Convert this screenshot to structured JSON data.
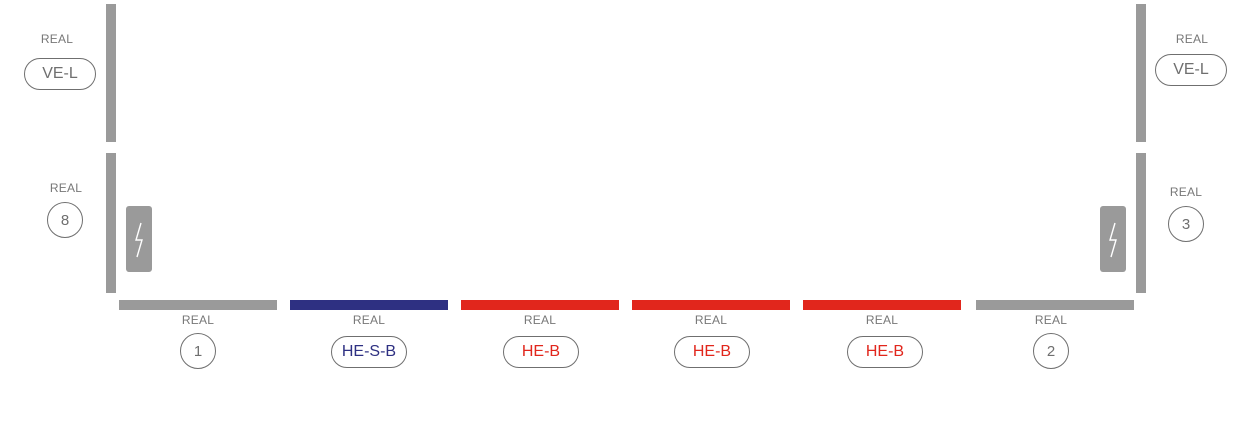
{
  "colors": {
    "gray": "#9a9a9a",
    "navy": "#2e3082",
    "red": "#e1261c",
    "text": "#6f6f6f"
  },
  "side_labels": {
    "left_top": {
      "small": "REAL",
      "name": "VE-L"
    },
    "right_top": {
      "small": "REAL",
      "name": "VE-L"
    },
    "left_mid": {
      "small": "REAL",
      "name": "8"
    },
    "right_mid": {
      "small": "REAL",
      "name": "3"
    }
  },
  "sockets": [
    {
      "icon": "lightning-icon"
    },
    {
      "icon": "lightning-icon"
    }
  ],
  "bottom_segments": [
    {
      "small": "REAL",
      "name": "1",
      "color": "#9a9a9a",
      "text_color": "#6f6f6f"
    },
    {
      "small": "REAL",
      "name": "HE-S-B",
      "color": "#2e3082",
      "text_color": "#2e3082"
    },
    {
      "small": "REAL",
      "name": "HE-B",
      "color": "#e1261c",
      "text_color": "#e1261c"
    },
    {
      "small": "REAL",
      "name": "HE-B",
      "color": "#e1261c",
      "text_color": "#e1261c"
    },
    {
      "small": "REAL",
      "name": "HE-B",
      "color": "#e1261c",
      "text_color": "#e1261c"
    },
    {
      "small": "REAL",
      "name": "2",
      "color": "#9a9a9a",
      "text_color": "#6f6f6f"
    }
  ]
}
